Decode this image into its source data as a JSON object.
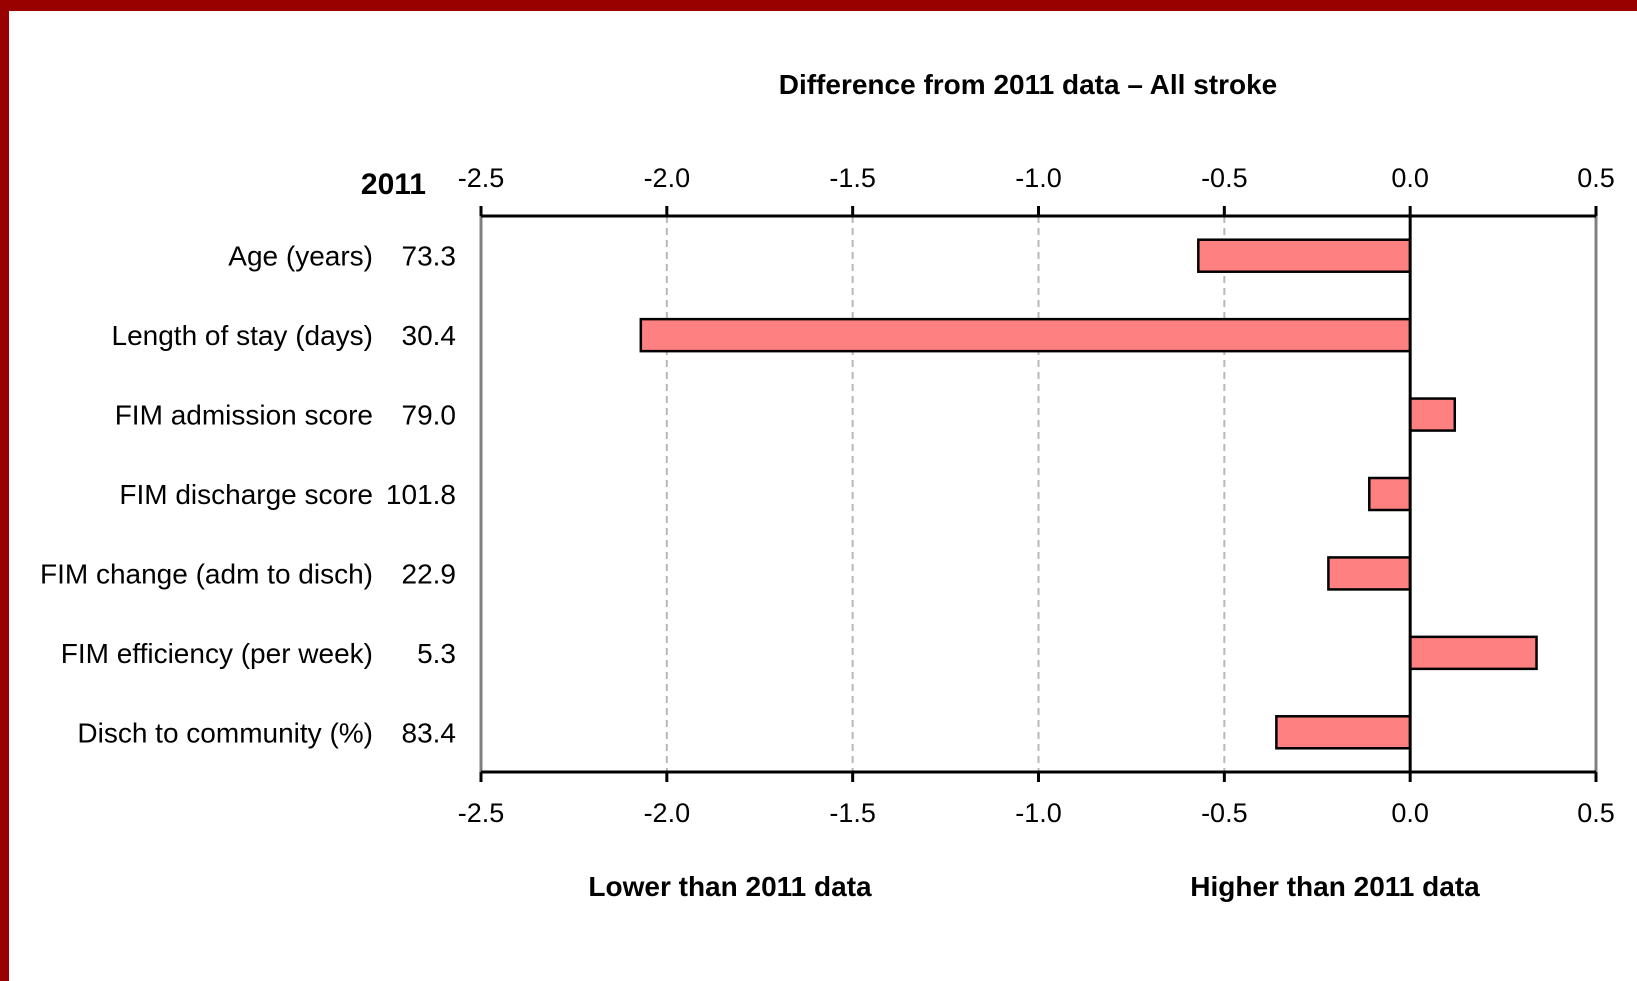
{
  "chart_data": {
    "type": "bar",
    "orientation": "horizontal",
    "title": "Difference from 2011 data – All stroke",
    "baseline_header": "2011",
    "categories": [
      "Age (years)",
      "Length of stay (days)",
      "FIM admission score",
      "FIM discharge score",
      "FIM change (adm to disch)",
      "FIM efficiency (per week)",
      "Disch to community (%)"
    ],
    "baseline_values": [
      "73.3",
      "30.4",
      "79.0",
      "101.8",
      "22.9",
      "5.3",
      "83.4"
    ],
    "values": [
      -0.57,
      -2.07,
      0.12,
      -0.11,
      -0.22,
      0.34,
      -0.36
    ],
    "xlim": [
      -2.5,
      0.5
    ],
    "ticks": [
      "-2.5",
      "-2.0",
      "-1.5",
      "-1.0",
      "-0.5",
      "0.0",
      "0.5"
    ],
    "tick_values": [
      -2.5,
      -2.0,
      -1.5,
      -1.0,
      -0.5,
      0.0,
      0.5
    ],
    "left_label": "Lower than 2011 data",
    "right_label": "Higher than 2011 data",
    "grid": "vertical-dashed",
    "bar_color": "#ff8080",
    "bar_edge_color": "#000000",
    "frame_color": "#990000"
  }
}
